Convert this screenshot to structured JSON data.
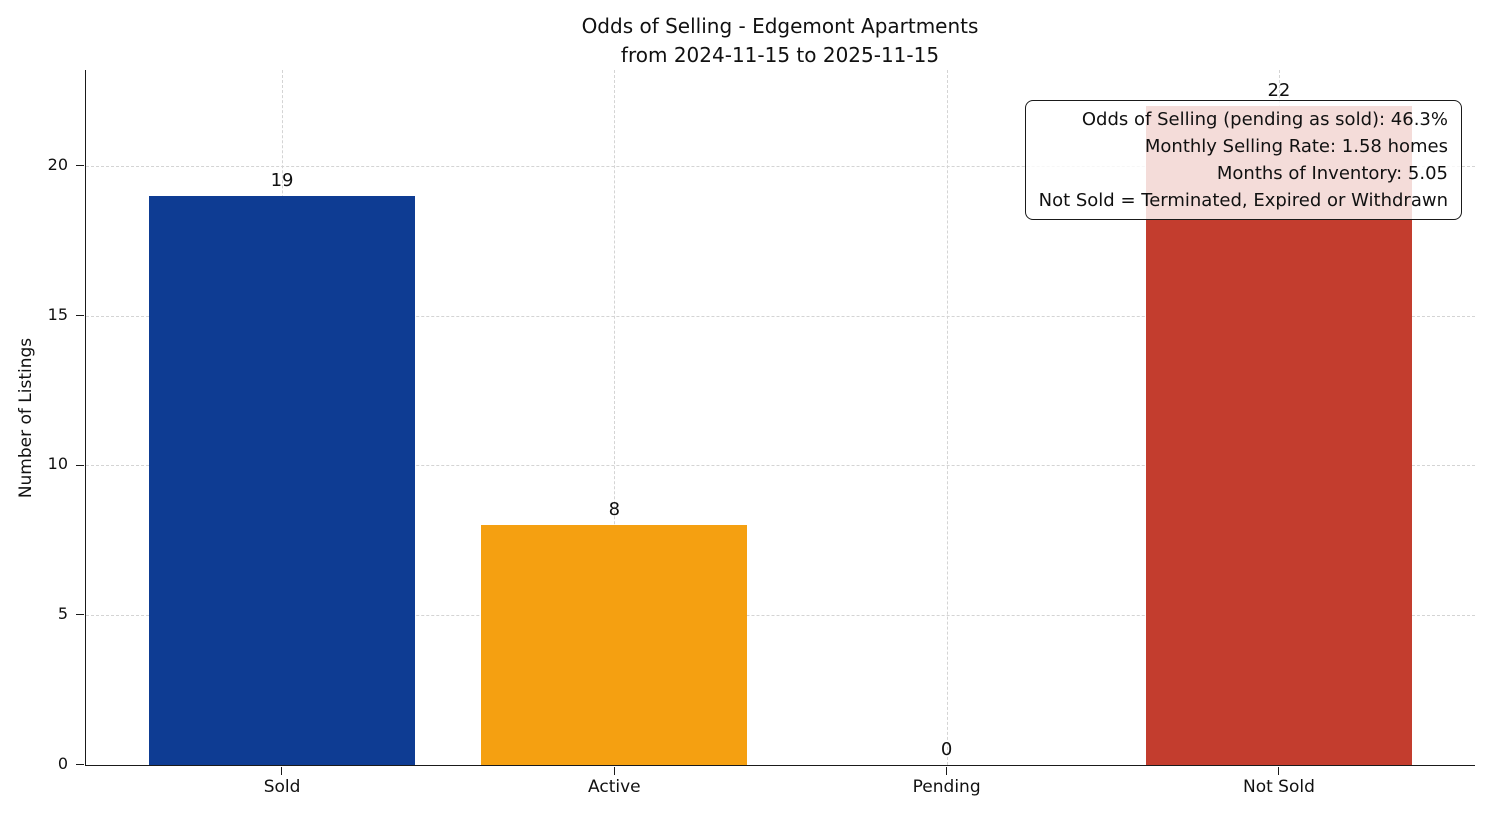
{
  "title": {
    "line1": "Odds of Selling - Edgemont Apartments",
    "line2": "from 2024-11-15 to 2025-11-15"
  },
  "chart_data": {
    "type": "bar",
    "title": "Odds of Selling - Edgemont Apartments from 2024-11-15 to 2025-11-15",
    "categories": [
      "Sold",
      "Active",
      "Pending",
      "Not Sold"
    ],
    "values": [
      19,
      8,
      0,
      22
    ],
    "value_labels": [
      "19",
      "8",
      "0",
      "22"
    ],
    "bar_colors": [
      "#0e3c93",
      "#f5a011",
      "#555555",
      "#c33d2e"
    ],
    "xlabel": "",
    "ylabel": "Number of Listings",
    "ylim": [
      0,
      23.2
    ],
    "yticks": [
      0,
      5,
      10,
      15,
      20
    ],
    "grid": "both-dashed",
    "legend": "none"
  },
  "annotation": {
    "lines": [
      "Odds of Selling (pending as sold): 46.3%",
      "Monthly Selling Rate: 1.58 homes",
      "Months of Inventory: 5.05",
      "Not Sold = Terminated, Expired or Withdrawn"
    ]
  },
  "colors": {
    "axis": "#1a1a1a",
    "grid": "#d4d4d4",
    "background": "#ffffff"
  }
}
